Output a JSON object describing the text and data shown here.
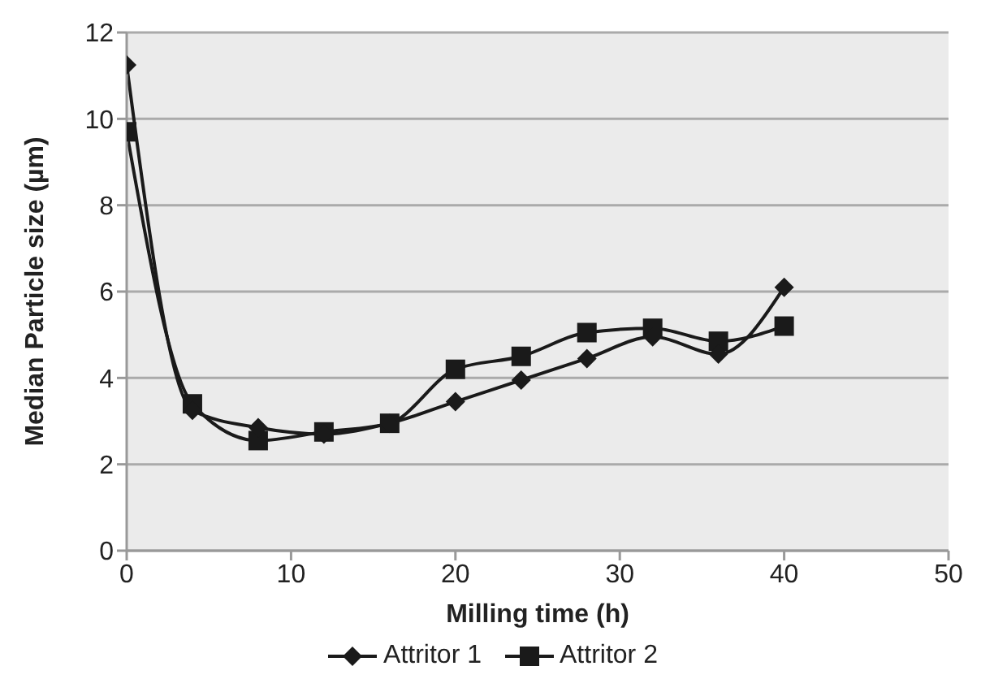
{
  "chart_data": {
    "type": "line",
    "xlabel": "Milling time (h)",
    "ylabel": "Median Particle size (µm)",
    "x": [
      0,
      4,
      8,
      12,
      16,
      20,
      24,
      28,
      32,
      36,
      40
    ],
    "series": [
      {
        "name": "Attritor 1",
        "color": "#1a1a1a",
        "marker": "diamond",
        "values": [
          11.25,
          3.25,
          2.85,
          2.7,
          2.95,
          3.45,
          3.95,
          4.45,
          4.95,
          4.55,
          6.1
        ]
      },
      {
        "name": "Attritor 2",
        "color": "#1a1a1a",
        "marker": "square",
        "values": [
          9.7,
          3.4,
          2.55,
          2.75,
          2.95,
          4.2,
          4.5,
          5.05,
          5.15,
          4.85,
          5.2
        ]
      }
    ],
    "xlim": [
      0,
      50
    ],
    "xticks": [
      0,
      10,
      20,
      30,
      40,
      50
    ],
    "ylim": [
      0,
      12
    ],
    "yticks": [
      0,
      2,
      4,
      6,
      8,
      10,
      12
    ],
    "grid": "y",
    "legend": "bottom",
    "line_style": "solid"
  }
}
